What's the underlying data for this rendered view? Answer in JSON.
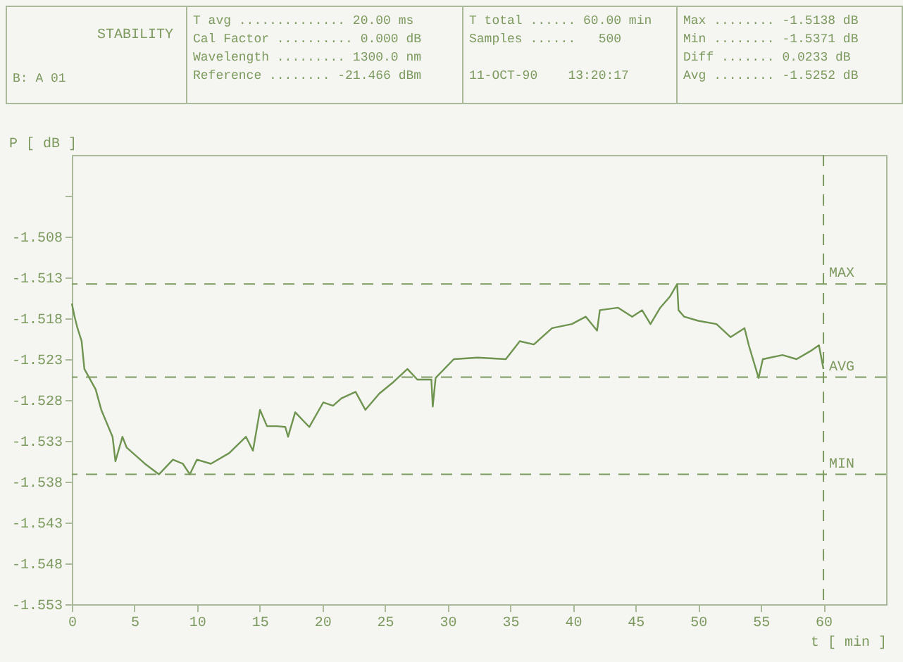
{
  "chart_data": {
    "type": "line",
    "title": "STABILITY",
    "annotations": [
      "B: A 01",
      "T avg .............. 20.00 ms",
      "Cal Factor .......... 0.000 dB",
      "Wavelength ......... 1300.0 nm",
      "Reference ........ -21.466 dBm",
      "T total ...... 60.00 min",
      "Samples ......   500",
      "11-OCT-90    13:20:17",
      "Max ........ -1.5138 dB",
      "Min ........ -1.5371 dB",
      "Diff ....... 0.0233 dB",
      "Avg ........ -1.5252 dB"
    ],
    "xlabel": "t [ min ]",
    "ylabel": "P [ dB ]",
    "x": [
      0,
      0.22,
      0.45,
      0.78,
      1.0,
      1.9,
      2.35,
      3.25,
      3.48,
      4.04,
      4.37,
      5.83,
      6.95,
      8.07,
      8.86,
      9.42,
      9.98,
      11.1,
      12.56,
      13.9,
      14.46,
      15.02,
      15.58,
      16.37,
      17.04,
      17.26,
      17.83,
      18.95,
      20.07,
      20.85,
      21.52,
      22.65,
      23.43,
      24.55,
      25.67,
      26.79,
      27.58,
      28.7,
      28.81,
      29.04,
      30.49,
      32.4,
      34.64,
      35.76,
      36.88,
      38.34,
      39.91,
      41.03,
      41.93,
      42.15,
      43.61,
      44.73,
      45.52,
      46.19,
      46.97,
      47.76,
      48.32,
      48.43,
      48.88,
      50.0,
      51.46,
      52.58,
      53.7,
      54.04,
      54.82,
      55.16,
      56.73,
      57.85,
      58.97,
      59.64,
      60.0
    ],
    "series": [
      {
        "color": "#6f9450",
        "values": [
          -1.5162,
          -1.5178,
          -1.5192,
          -1.5208,
          -1.5242,
          -1.5267,
          -1.5292,
          -1.5325,
          -1.5355,
          -1.5325,
          -1.5338,
          -1.5358,
          -1.5371,
          -1.5353,
          -1.5358,
          -1.5371,
          -1.5353,
          -1.5358,
          -1.5345,
          -1.5325,
          -1.5342,
          -1.5292,
          -1.5312,
          -1.5312,
          -1.5313,
          -1.5325,
          -1.5295,
          -1.5313,
          -1.5283,
          -1.5287,
          -1.5278,
          -1.527,
          -1.5292,
          -1.5272,
          -1.5258,
          -1.5242,
          -1.5255,
          -1.5255,
          -1.5288,
          -1.5253,
          -1.523,
          -1.5228,
          -1.523,
          -1.5208,
          -1.5212,
          -1.5192,
          -1.5187,
          -1.5178,
          -1.5195,
          -1.517,
          -1.5167,
          -1.5178,
          -1.517,
          -1.5187,
          -1.5167,
          -1.5153,
          -1.5138,
          -1.517,
          -1.5178,
          -1.5183,
          -1.5187,
          -1.5203,
          -1.5192,
          -1.5213,
          -1.5253,
          -1.523,
          -1.5225,
          -1.523,
          -1.522,
          -1.5213,
          -1.5242
        ]
      }
    ],
    "xlim": [
      0,
      65
    ],
    "xticks": [
      0,
      5,
      10,
      15,
      20,
      25,
      30,
      35,
      40,
      45,
      50,
      55,
      60
    ],
    "ylim": [
      -1.553,
      -1.498
    ],
    "yticks": [
      -1.553,
      -1.548,
      -1.543,
      -1.538,
      -1.533,
      -1.528,
      -1.523,
      -1.518,
      -1.513,
      -1.508,
      {
        "value": -1.503,
        "label": null
      }
    ],
    "ref_lines": [
      {
        "axis": "y",
        "value": -1.5138,
        "label": "MAX",
        "color": "#7d9a5e",
        "line_style": "dashed"
      },
      {
        "axis": "y",
        "value": -1.5252,
        "label": "AVG",
        "color": "#7d9a5e",
        "line_style": "dashed"
      },
      {
        "axis": "y",
        "value": -1.5371,
        "label": "MIN",
        "color": "#7d9a5e",
        "line_style": "dashed"
      },
      {
        "axis": "x",
        "value": 60,
        "color": "#7d9a5e",
        "line_style": "dashed"
      }
    ],
    "line_style": "solid",
    "grid": false
  }
}
